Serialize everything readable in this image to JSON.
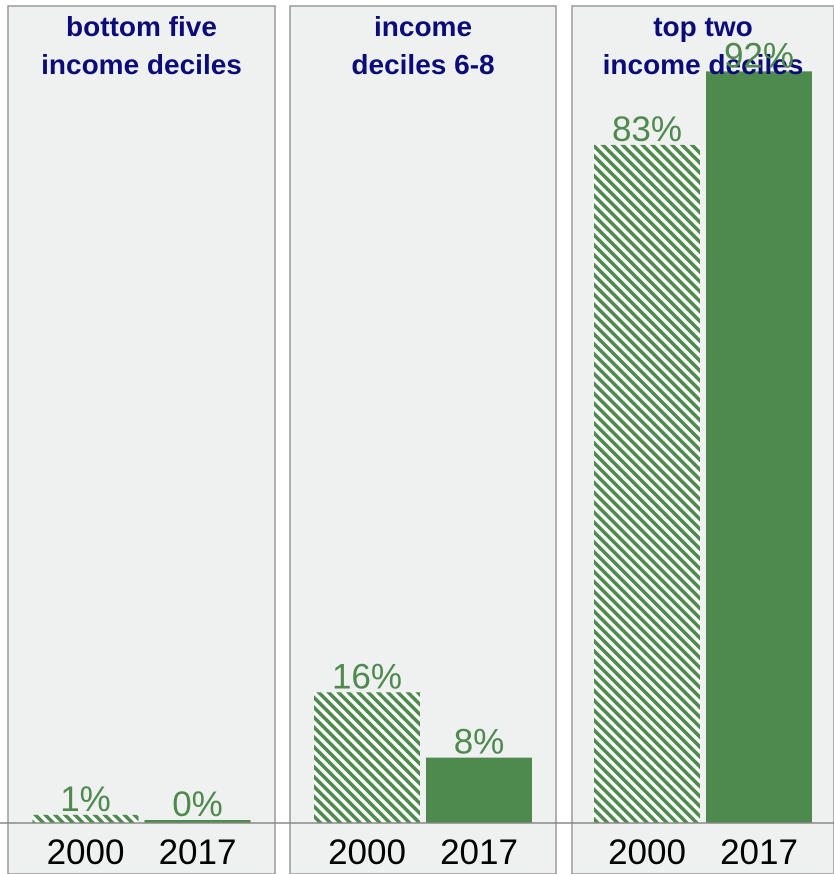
{
  "colors": {
    "panel_bg": "#eff0f0",
    "panel_border": "#999999",
    "bar": "#4e8a4d",
    "title": "#0b0b7a",
    "value_label": "#4e8a4d",
    "tick_label": "#000000"
  },
  "chart_data": {
    "type": "bar",
    "ylim": [
      0,
      100
    ],
    "grid": false,
    "series": [
      {
        "name": "",
        "style": "hatched"
      },
      {
        "name": "",
        "style": "solid"
      }
    ],
    "panels": [
      {
        "title": [
          "bottom five",
          "income deciles"
        ],
        "categories": [
          "2000",
          "2017"
        ],
        "values": [
          1,
          0
        ],
        "labels": [
          "1%",
          "0%"
        ]
      },
      {
        "title": [
          "income",
          "deciles 6-8"
        ],
        "categories": [
          "2000",
          "2017"
        ],
        "values": [
          16,
          8
        ],
        "labels": [
          "16%",
          "8%"
        ]
      },
      {
        "title": [
          "top two",
          "income deciles"
        ],
        "categories": [
          "2000",
          "2017"
        ],
        "values": [
          83,
          92
        ],
        "labels": [
          "83%",
          "92%"
        ]
      }
    ]
  }
}
